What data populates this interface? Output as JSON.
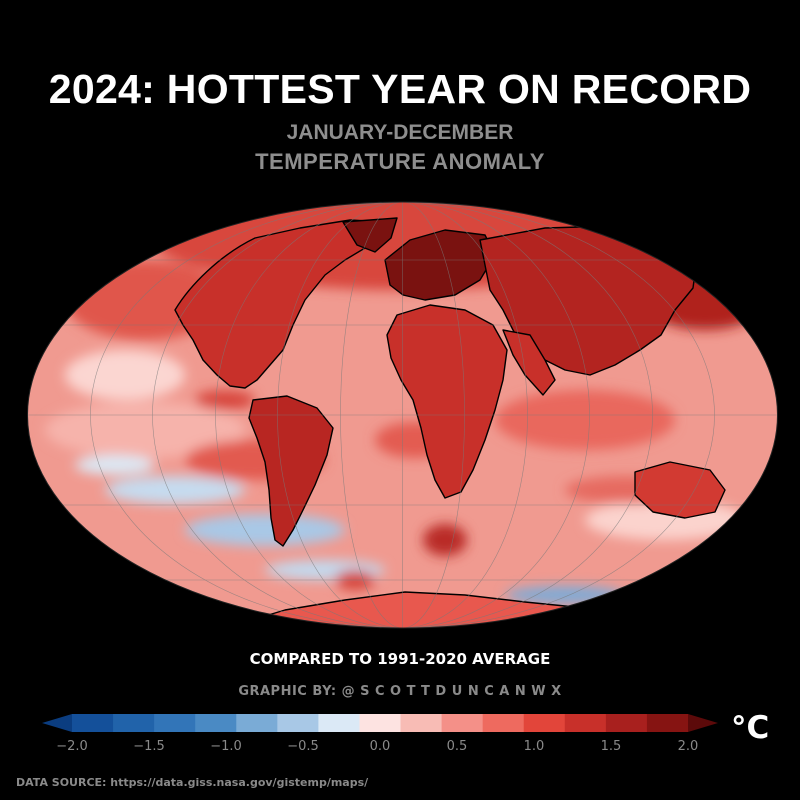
{
  "title": "2024: HOTTEST YEAR ON RECORD",
  "subtitle_line1": "JANUARY-DECEMBER",
  "subtitle_line2": "TEMPERATURE ANOMALY",
  "map": {
    "projection": "mollweide",
    "background": "#000000",
    "coastline_color": "#000000",
    "gridline_color": "#7a7a7a",
    "ocean_base_color": "#f09a90",
    "land_base_color": "#d23a32"
  },
  "comparison_note": "COMPARED TO 1991-2020 AVERAGE",
  "credit": "GRAPHIC BY: @ S C O T T D U N C A N W X",
  "colorbar": {
    "min": -2.0,
    "max": 2.0,
    "step": 0.25,
    "unit": "°C",
    "tick_labels": [
      "−2.0",
      "−1.5",
      "−1.0",
      "−0.5",
      "0.0",
      "0.5",
      "1.0",
      "1.5",
      "2.0"
    ],
    "colors": [
      "#0b3d80",
      "#14509a",
      "#2163aa",
      "#3275b8",
      "#4a8ac4",
      "#7aabd6",
      "#a8c8e6",
      "#dbe9f6",
      "#fde3e1",
      "#f8bcb5",
      "#f49088",
      "#ee6a5f",
      "#e2453a",
      "#c8302a",
      "#a8201e",
      "#861412",
      "#5c0a0a"
    ]
  },
  "data_source": "DATA SOURCE: https://data.giss.nasa.gov/gistemp/maps/"
}
